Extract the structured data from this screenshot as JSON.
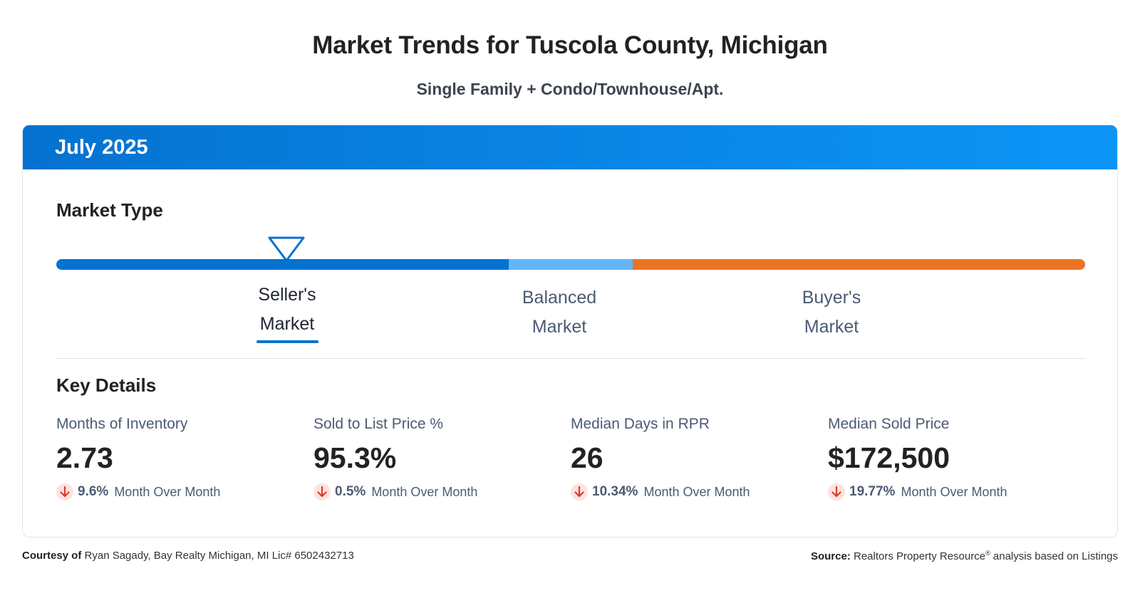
{
  "header": {
    "title": "Market Trends for Tuscola County, Michigan",
    "subtitle": "Single Family + Condo/Townhouse/Apt."
  },
  "card": {
    "period": "July 2025",
    "market_type": {
      "title": "Market Type",
      "labels": {
        "seller_line1": "Seller's",
        "seller_line2": "Market",
        "balanced_line1": "Balanced",
        "balanced_line2": "Market",
        "buyer_line1": "Buyer's",
        "buyer_line2": "Market"
      },
      "selected": "Seller's Market",
      "colors": {
        "seller": "#0572cf",
        "balanced": "#63b6f5",
        "buyer": "#ea7424"
      }
    },
    "key_details": {
      "title": "Key Details",
      "metrics": [
        {
          "label": "Months of Inventory",
          "value": "2.73",
          "change": "9.6%",
          "change_label": "Month Over Month",
          "direction": "down"
        },
        {
          "label": "Sold to List Price %",
          "value": "95.3%",
          "change": "0.5%",
          "change_label": "Month Over Month",
          "direction": "down"
        },
        {
          "label": "Median Days in RPR",
          "value": "26",
          "change": "10.34%",
          "change_label": "Month Over Month",
          "direction": "down"
        },
        {
          "label": "Median Sold Price",
          "value": "$172,500",
          "change": "19.77%",
          "change_label": "Month Over Month",
          "direction": "down"
        }
      ]
    }
  },
  "footer": {
    "courtesy_label": "Courtesy of",
    "courtesy_text": "Ryan Sagady, Bay Realty Michigan, MI Lic# 6502432713",
    "source_label": "Source:",
    "source_name": "Realtors Property Resource",
    "source_mark": "®",
    "source_tail": "analysis based on Listings"
  },
  "icons": {
    "marker": "triangle-down-marker-icon",
    "change": "arrow-down-icon"
  },
  "colors": {
    "accent": "#0572cf",
    "down_arrow": "#d93a2b",
    "down_badge": "#fde3e0"
  }
}
